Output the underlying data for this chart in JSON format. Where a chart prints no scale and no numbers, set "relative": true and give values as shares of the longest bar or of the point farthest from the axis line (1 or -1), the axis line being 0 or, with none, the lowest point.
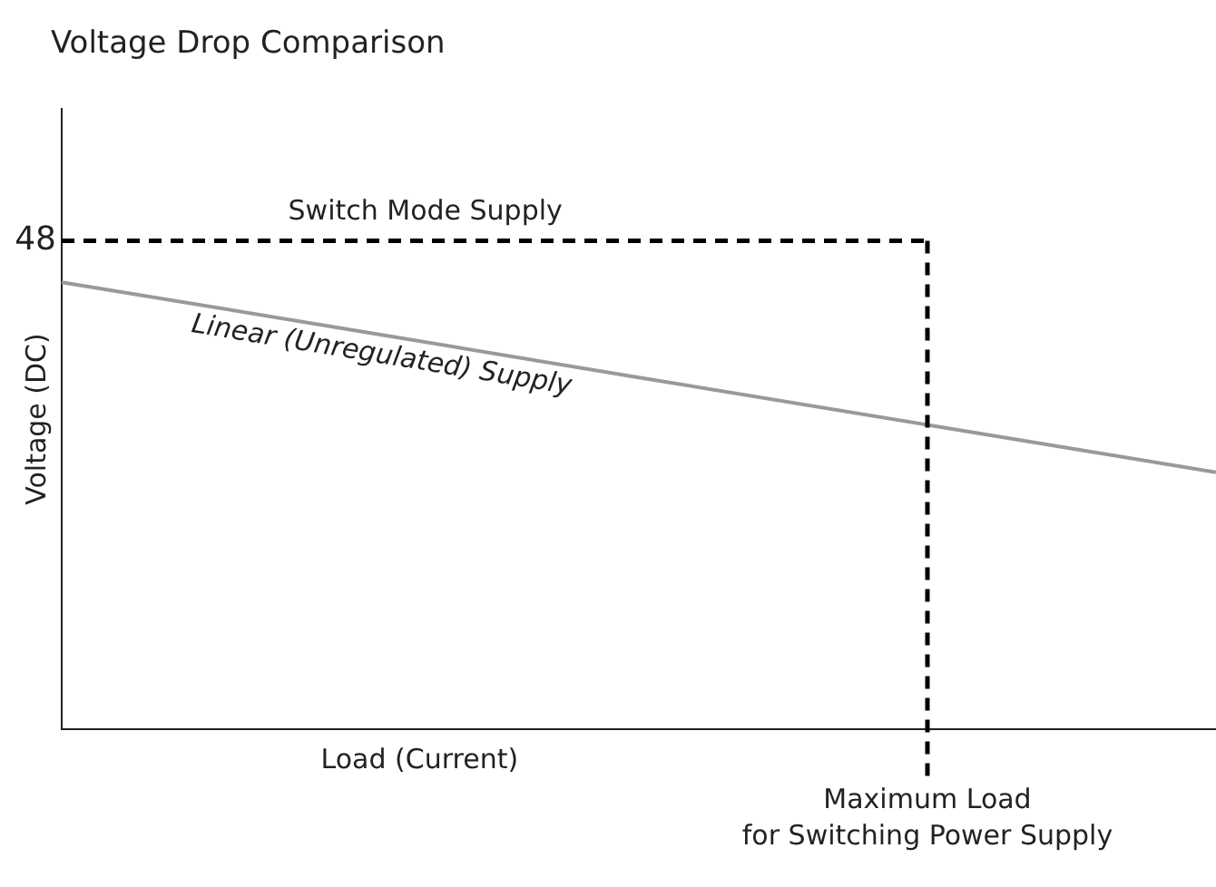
{
  "chart_data": {
    "type": "line",
    "title": "Voltage Drop Comparison",
    "xlabel": "Load (Current)",
    "ylabel": "Voltage (DC)",
    "relative": true,
    "categories": [
      null,
      null,
      null,
      null,
      null
    ],
    "grid": false,
    "legend": false,
    "marker": "none",
    "series": [
      {
        "name": "Switch Mode Supply",
        "color": "#000000",
        "line_style": "dashed",
        "values": [
          1,
          1,
          1,
          1,
          null
        ]
      },
      {
        "name": "Linear (Unregulated) Supply",
        "color": "#999999",
        "line_style": "solid",
        "values": [
          0.915,
          0.818,
          0.72,
          0.623,
          0.526
        ]
      }
    ],
    "annotations": [
      "48",
      "Maximum Load for Switching Power Supply"
    ]
  }
}
